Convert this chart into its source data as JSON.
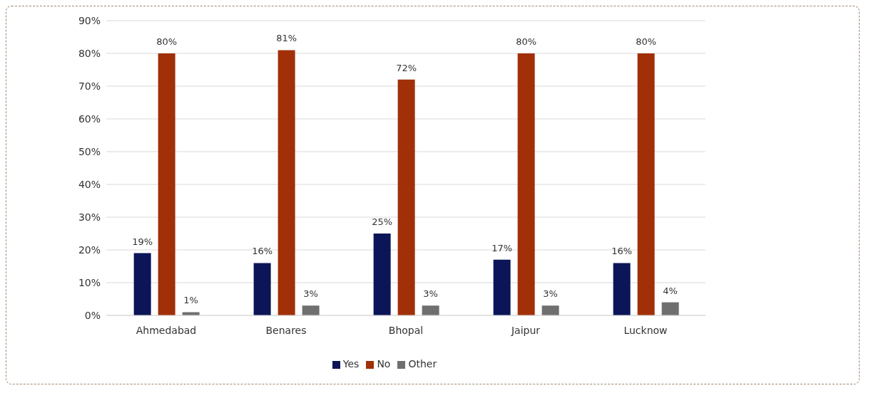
{
  "chart_data": {
    "type": "bar",
    "categories": [
      "Ahmedabad",
      "Benares",
      "Bhopal",
      "Jaipur",
      "Lucknow"
    ],
    "series": [
      {
        "name": "Yes",
        "color": "#0b1557",
        "values": [
          19,
          16,
          25,
          17,
          16
        ],
        "value_labels": [
          "19%",
          "16%",
          "25%",
          "17%",
          "16%"
        ]
      },
      {
        "name": "No",
        "color": "#a12f08",
        "values": [
          80,
          81,
          72,
          80,
          80
        ],
        "value_labels": [
          "80%",
          "81%",
          "72%",
          "80%",
          "80%"
        ]
      },
      {
        "name": "Other",
        "color": "#6f6f6f",
        "values": [
          1,
          3,
          3,
          3,
          4
        ],
        "value_labels": [
          "1%",
          "3%",
          "3%",
          "3%",
          "4%"
        ]
      }
    ],
    "ylim": [
      0,
      90
    ],
    "yticks": [
      {
        "value": 0,
        "label": "0%"
      },
      {
        "value": 10,
        "label": "10%"
      },
      {
        "value": 20,
        "label": "20%"
      },
      {
        "value": 30,
        "label": "30%"
      },
      {
        "value": 40,
        "label": "40%"
      },
      {
        "value": 50,
        "label": "50%"
      },
      {
        "value": 60,
        "label": "60%"
      },
      {
        "value": 70,
        "label": "70%"
      },
      {
        "value": 80,
        "label": "80%"
      },
      {
        "value": 90,
        "label": "90%"
      }
    ],
    "grid": "y",
    "legend": "bottom"
  }
}
